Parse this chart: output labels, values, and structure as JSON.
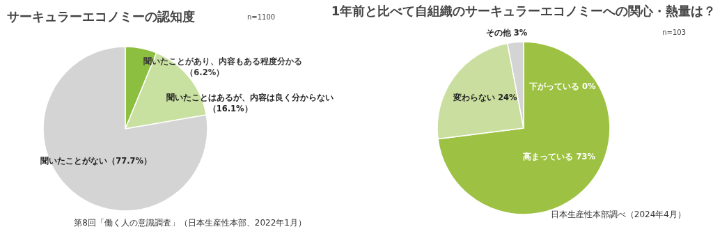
{
  "chart_data": [
    {
      "type": "pie",
      "title": "サーキュラーエコノミーの認知度",
      "subtitle": "n=1100",
      "categories": [
        "聞いたことがあり、内容もある程度分かる（6.2%）",
        "聞いたことはあるが、内容は良く分からない（16.1%）",
        "聞いたことがない（77.7%）"
      ],
      "values": [
        6.2,
        16.1,
        77.7
      ],
      "colors": [
        "#8cbf3f",
        "#c8e0a0",
        "#d4d4d4"
      ],
      "annotations": [
        "第8回「働く人の意識調査」（日本生産性本部、2022年1月）"
      ]
    },
    {
      "type": "pie",
      "title": "1年前と比べて自組織のサーキュラーエコノミーへの関心・熱量は？",
      "subtitle": "n=103",
      "categories": [
        "下がっている 0%",
        "高まっている 73%",
        "変わらない 24%",
        "その他 3%"
      ],
      "values": [
        0,
        73,
        24,
        3
      ],
      "colors": [
        "#9dc243",
        "#9dc243",
        "#cadf9f",
        "#d4d4d4"
      ],
      "annotations": [
        "日本生産性本部調べ（2024年4月）"
      ]
    }
  ]
}
